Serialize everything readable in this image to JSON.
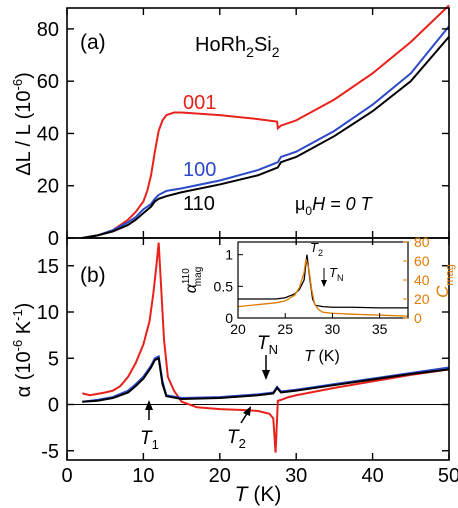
{
  "chart_data": [
    {
      "panel": "(a)",
      "type": "line",
      "formula": {
        "base": "HoRh",
        "sub1": "2",
        "mid": "Si",
        "sub2": "2"
      },
      "field_label": {
        "mu": "μ",
        "mu_sub": "0",
        "text": "H = 0 T"
      },
      "ylabel": {
        "text": "ΔL / L (10",
        "sup": "-6",
        "end": ")"
      },
      "xlim": [
        0,
        50
      ],
      "ylim": [
        0,
        88
      ],
      "yticks": [
        0,
        20,
        40,
        60,
        80
      ],
      "series": [
        {
          "name": "001",
          "color": "#e8221b",
          "x": [
            2,
            4,
            6,
            8,
            9,
            10,
            10.5,
            11,
            11.5,
            12,
            12.5,
            13,
            14,
            15,
            20,
            25,
            27.5,
            27.6,
            28,
            30,
            35,
            40,
            45,
            50
          ],
          "y": [
            0,
            1,
            3,
            7,
            10,
            14,
            18,
            24,
            33,
            41,
            45,
            47,
            48,
            48,
            47,
            45.5,
            44.5,
            42,
            43,
            45,
            53,
            63,
            75,
            89
          ]
        },
        {
          "name": "100",
          "color": "#2b49c8",
          "x": [
            2,
            4,
            6,
            8,
            9,
            10,
            11,
            11.5,
            12,
            13,
            15,
            20,
            25,
            27.6,
            28,
            30,
            35,
            40,
            45,
            50
          ],
          "y": [
            0,
            1,
            3,
            6,
            8,
            11,
            13,
            15,
            16.5,
            18,
            19,
            22,
            26,
            29,
            31,
            33,
            41,
            51,
            63,
            81
          ]
        },
        {
          "name": "110",
          "color": "#000000",
          "x": [
            2,
            4,
            6,
            8,
            9,
            10,
            11,
            11.5,
            12,
            13,
            15,
            20,
            25,
            27.6,
            28,
            30,
            35,
            40,
            45,
            50
          ],
          "y": [
            0,
            1,
            2.5,
            5,
            7,
            9.5,
            12,
            14,
            15,
            16,
            17.5,
            20.5,
            24,
            27,
            29,
            31,
            39,
            48.5,
            60,
            77
          ]
        }
      ]
    },
    {
      "panel": "(b)",
      "type": "line",
      "ylabel": {
        "text": "α (10",
        "sup": "-6",
        "mid": " K",
        "sup2": "-1",
        "end": ")"
      },
      "xlabel": {
        "italic": "T",
        "rest": " (K)"
      },
      "xlim": [
        0,
        50
      ],
      "ylim": [
        -6,
        18
      ],
      "yticks": [
        -5,
        0,
        5,
        10,
        15
      ],
      "xticks": [
        0,
        10,
        20,
        30,
        40,
        50
      ],
      "annotations": [
        {
          "name": "T1",
          "text": "T",
          "sub": "1",
          "x": 12
        },
        {
          "name": "T2",
          "text": "T",
          "sub": "2",
          "x": 26.8
        },
        {
          "name": "TN",
          "text": "T",
          "sub": "N",
          "x": 27.7
        }
      ],
      "series": [
        {
          "name": "001",
          "color": "#e8221b",
          "x": [
            2,
            3,
            5,
            6,
            7,
            8,
            9,
            10,
            10.8,
            11.3,
            11.7,
            12,
            12.3,
            12.7,
            13.2,
            14,
            15,
            17,
            20,
            23,
            25,
            26.5,
            27,
            27.3,
            27.6,
            28,
            29,
            30,
            35,
            40,
            45,
            50
          ],
          "y": [
            1.2,
            1,
            1.3,
            1.5,
            2,
            3,
            4.5,
            6.5,
            9,
            12,
            15,
            17.5,
            13,
            7,
            3,
            1.5,
            0.3,
            -0.3,
            -0.5,
            -0.6,
            -0.7,
            -1,
            -1.5,
            -5.2,
            0.4,
            0.5,
            0.8,
            1,
            1.8,
            2.5,
            3.2,
            3.8
          ]
        },
        {
          "name": "100",
          "color": "#2b49c8",
          "x": [
            2,
            4,
            6,
            8,
            9,
            10,
            11,
            11.5,
            12,
            12.5,
            13,
            15,
            20,
            25,
            27,
            27.5,
            28,
            30,
            35,
            40,
            45,
            50
          ],
          "y": [
            0.3,
            0.5,
            0.8,
            1.5,
            2.2,
            3,
            4.2,
            5,
            5.2,
            2.5,
            1,
            0.7,
            0.8,
            1.1,
            1.3,
            1.9,
            1.4,
            1.6,
            2.2,
            2.8,
            3.4,
            4
          ]
        },
        {
          "name": "110",
          "color": "#000000",
          "x": [
            2,
            4,
            6,
            8,
            9,
            10,
            11,
            11.5,
            12,
            12.5,
            13,
            15,
            20,
            25,
            27,
            27.5,
            28,
            30,
            35,
            40,
            45,
            50
          ],
          "y": [
            0.3,
            0.4,
            0.7,
            1.3,
            2,
            2.8,
            4,
            4.8,
            5,
            2.2,
            0.9,
            0.6,
            0.7,
            1,
            1.2,
            1.8,
            1.3,
            1.5,
            2.1,
            2.7,
            3.3,
            3.8
          ]
        }
      ]
    },
    {
      "panel": "inset",
      "type": "line",
      "ylabel_left": {
        "text": "α",
        "sup": "110",
        "sub": "mag"
      },
      "ylabel_right": {
        "text": "C",
        "sub": "mag",
        "color": "#e07a00"
      },
      "xlabel": {
        "italic": "T",
        "rest": " (K)"
      },
      "xlim": [
        20,
        38
      ],
      "ylim_left": [
        0,
        1.2
      ],
      "ylim_right": [
        0,
        80
      ],
      "xticks": [
        20,
        25,
        30,
        35
      ],
      "yticks_left": [
        0,
        0.5,
        1
      ],
      "yticks_right": [
        0,
        20,
        40,
        60,
        80
      ],
      "annotations": [
        {
          "name": "T2",
          "text": "T",
          "sub": "2"
        },
        {
          "name": "TN",
          "text": "T",
          "sub": "N"
        }
      ],
      "series": [
        {
          "name": "alpha110_mag",
          "color": "#000000",
          "axis": "left",
          "x": [
            20,
            22,
            24,
            25,
            26,
            26.5,
            27,
            27.3,
            27.6,
            27.9,
            28.2,
            29,
            30,
            32,
            35,
            38
          ],
          "y": [
            0.3,
            0.3,
            0.3,
            0.32,
            0.38,
            0.45,
            0.6,
            1.0,
            0.62,
            0.3,
            0.2,
            0.18,
            0.17,
            0.17,
            0.16,
            0.16
          ]
        },
        {
          "name": "C_mag",
          "color": "#e07a00",
          "axis": "right",
          "x": [
            20,
            22,
            24,
            25,
            26,
            26.5,
            27,
            27.2,
            27.5,
            27.8,
            28.1,
            28.5,
            29,
            30,
            32,
            35,
            38
          ],
          "y": [
            12,
            14,
            16,
            18,
            24,
            32,
            48,
            62,
            52,
            30,
            15,
            9,
            6,
            5,
            4,
            3,
            2
          ]
        }
      ]
    }
  ]
}
